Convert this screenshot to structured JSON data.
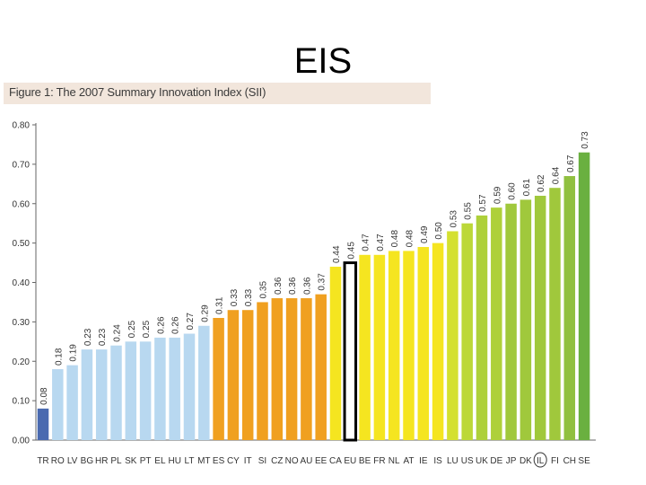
{
  "slide": {
    "title": "EIS"
  },
  "figure": {
    "caption": "Figure 1: The 2007 Summary Innovation Index (SII)"
  },
  "chart_data": {
    "type": "bar",
    "title": "Figure 1: The 2007 Summary Innovation Index (SII)",
    "xlabel": "",
    "ylabel": "",
    "ylim": [
      0,
      0.8
    ],
    "yticks": [
      "0.00",
      "0.10",
      "0.20",
      "0.30",
      "0.40",
      "0.50",
      "0.60",
      "0.70",
      "0.80"
    ],
    "grid": false,
    "legend": "none",
    "categories": [
      "TR",
      "RO",
      "LV",
      "BG",
      "HR",
      "PL",
      "SK",
      "PT",
      "EL",
      "HU",
      "LT",
      "MT",
      "ES",
      "CY",
      "IT",
      "SI",
      "CZ",
      "NO",
      "AU",
      "EE",
      "CA",
      "EU",
      "BE",
      "FR",
      "NL",
      "AT",
      "IE",
      "IS",
      "LU",
      "US",
      "UK",
      "DE",
      "JP",
      "DK",
      "IL",
      "FI",
      "CH",
      "SE"
    ],
    "values": [
      0.08,
      0.18,
      0.19,
      0.23,
      0.23,
      0.24,
      0.25,
      0.25,
      0.26,
      0.26,
      0.27,
      0.29,
      0.31,
      0.33,
      0.33,
      0.35,
      0.36,
      0.36,
      0.36,
      0.37,
      0.44,
      0.45,
      0.47,
      0.47,
      0.48,
      0.48,
      0.49,
      0.5,
      0.53,
      0.55,
      0.57,
      0.59,
      0.6,
      0.61,
      0.62,
      0.64,
      0.67,
      0.73
    ],
    "value_labels": [
      "0.08",
      "0.18",
      "0.19",
      "0.23",
      "0.23",
      "0.24",
      "0.25",
      "0.25",
      "0.26",
      "0.26",
      "0.27",
      "0.29",
      "0.31",
      "0.33",
      "0.33",
      "0.35",
      "0.36",
      "0.36",
      "0.36",
      "0.37",
      "0.44",
      "0.45",
      "0.47",
      "0.47",
      "0.48",
      "0.48",
      "0.49",
      "0.50",
      "0.53",
      "0.55",
      "0.57",
      "0.59",
      "0.60",
      "0.61",
      "0.62",
      "0.64",
      "0.67",
      "0.73"
    ],
    "bar_colors": [
      "#4a6ab0",
      "#b8d8f0",
      "#b8d8f0",
      "#b8d8f0",
      "#b8d8f0",
      "#b8d8f0",
      "#b8d8f0",
      "#b8d8f0",
      "#b8d8f0",
      "#b8d8f0",
      "#b8d8f0",
      "#b8d8f0",
      "#f0a020",
      "#f0a020",
      "#f0a020",
      "#f0a020",
      "#f0a020",
      "#f0a020",
      "#f0a020",
      "#f0a020",
      "#f5e520",
      "#ffffff",
      "#f5e520",
      "#f5e520",
      "#f5e520",
      "#f5e520",
      "#f5e520",
      "#f5e520",
      "#d4e030",
      "#bcd838",
      "#aed03a",
      "#aed03a",
      "#a0c83c",
      "#a0c83c",
      "#a0c83c",
      "#a0c83c",
      "#90c040",
      "#6ab040"
    ],
    "highlighted": {
      "outlined_bar": "EU",
      "circled_label": "IL"
    }
  }
}
